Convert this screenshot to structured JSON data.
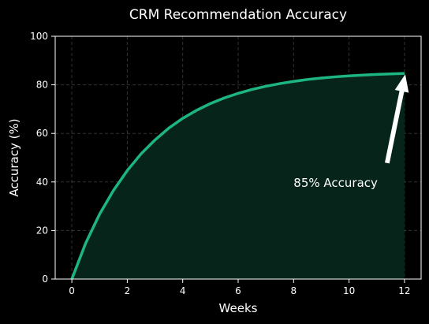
{
  "colors": {
    "background": "#000000",
    "line": "#1db584",
    "fill": "#06241a",
    "text": "#ffffff",
    "arrow": "#ffffff"
  },
  "chart_data": {
    "type": "area",
    "title": "CRM Recommendation Accuracy",
    "xlabel": "Weeks",
    "ylabel": "Accuracy (%)",
    "xlim": [
      -0.6,
      12.6
    ],
    "ylim": [
      0,
      100
    ],
    "xticks": [
      0,
      2,
      4,
      6,
      8,
      10,
      12
    ],
    "yticks": [
      0,
      20,
      40,
      60,
      80,
      100
    ],
    "grid": true,
    "x": [
      0,
      0.5,
      1,
      1.5,
      2,
      2.5,
      3,
      3.5,
      4,
      4.5,
      5,
      5.5,
      6,
      6.5,
      7,
      7.5,
      8,
      8.5,
      9,
      9.5,
      10,
      10.5,
      11,
      11.5,
      12
    ],
    "y": [
      0,
      14.8,
      26.7,
      36.5,
      44.7,
      51.6,
      57.3,
      62.2,
      66.2,
      69.5,
      72.3,
      74.6,
      76.5,
      78.1,
      79.4,
      80.5,
      81.4,
      82.2,
      82.8,
      83.3,
      83.7,
      84.0,
      84.3,
      84.5,
      84.7
    ],
    "annotation": {
      "text": "85% Accuracy",
      "point": [
        12,
        85
      ],
      "text_position": [
        8,
        40
      ]
    }
  }
}
